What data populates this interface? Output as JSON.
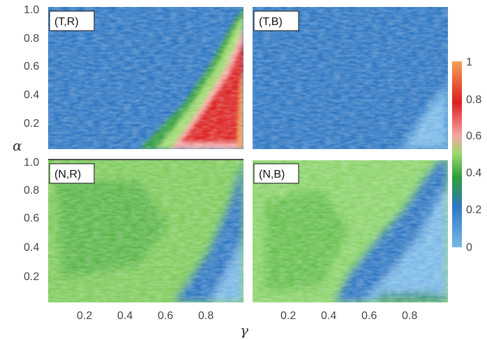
{
  "chart_data": {
    "type": "heatmap",
    "xlabel": "γ",
    "ylabel": "α",
    "xlim": [
      0,
      1
    ],
    "ylim": [
      0,
      1
    ],
    "x_ticks": [
      "0.2",
      "0.4",
      "0.6",
      "0.8"
    ],
    "y_ticks": [
      "0.2",
      "0.4",
      "0.6",
      "0.8",
      "1.0"
    ],
    "colorbar": {
      "range": [
        0,
        1
      ],
      "ticks": [
        "0",
        "0.2",
        "0.4",
        "0.6",
        "0.8",
        "1"
      ],
      "colors": [
        "#79b8e6",
        "#2e77c2",
        "#2e9e3a",
        "#98d86a",
        "#f4a8a4",
        "#dd2020",
        "#f6a055"
      ]
    },
    "panels": [
      {
        "label": "(T,R)",
        "description_values": [
          {
            "gamma": 0.2,
            "alpha": 0.5,
            "value": 0.15
          },
          {
            "gamma": 0.7,
            "alpha": 0.2,
            "value": 0.45
          },
          {
            "gamma": 0.8,
            "alpha": 0.2,
            "value": 0.65
          },
          {
            "gamma": 0.95,
            "alpha": 0.4,
            "value": 0.75
          },
          {
            "gamma": 0.98,
            "alpha": 0.05,
            "value": 0.95
          }
        ]
      },
      {
        "label": "(T,B)",
        "description_values": [
          {
            "gamma": 0.3,
            "alpha": 0.6,
            "value": 0.15
          },
          {
            "gamma": 0.9,
            "alpha": 0.1,
            "value": 0.1
          }
        ]
      },
      {
        "label": "(N,R)",
        "description_values": [
          {
            "gamma": 0.3,
            "alpha": 0.5,
            "value": 0.4
          },
          {
            "gamma": 0.9,
            "alpha": 0.2,
            "value": 0.15
          }
        ]
      },
      {
        "label": "(N,B)",
        "description_values": [
          {
            "gamma": 0.3,
            "alpha": 0.5,
            "value": 0.35
          },
          {
            "gamma": 0.85,
            "alpha": 0.2,
            "value": 0.08
          }
        ]
      }
    ]
  }
}
